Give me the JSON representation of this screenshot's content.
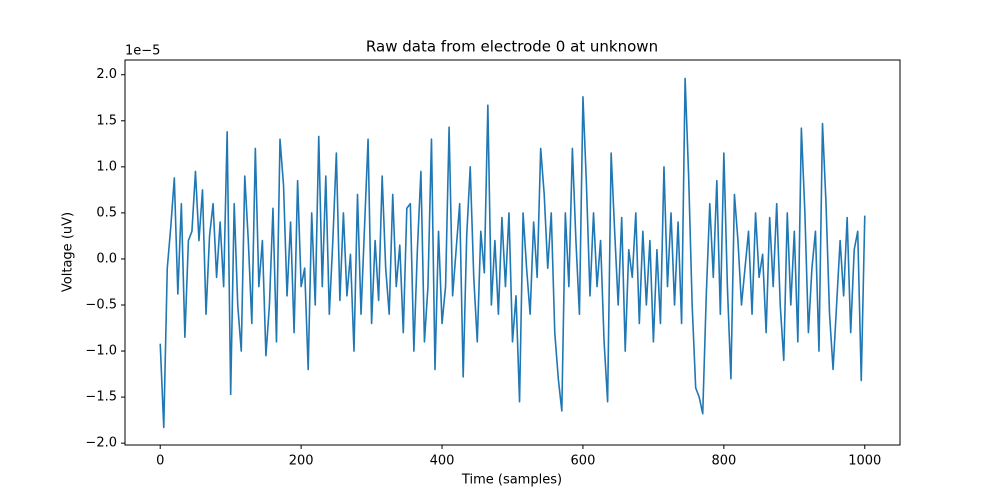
{
  "chart_data": {
    "type": "line",
    "title": "Raw data from electrode 0 at unknown",
    "x_label": "Time (samples)",
    "y_label": "Voltage (uV)",
    "y_offset_label": "1e−5",
    "xlim": [
      -50,
      1050
    ],
    "ylim": [
      -2.02,
      2.16
    ],
    "xticks": [
      0,
      200,
      400,
      600,
      800,
      1000
    ],
    "yticks": [
      {
        "value": -2,
        "label": "−2.0"
      },
      {
        "value": -1.5,
        "label": "−1.5"
      },
      {
        "value": -1,
        "label": "−1.0"
      },
      {
        "value": -0.5,
        "label": "−0.5"
      },
      {
        "value": 0,
        "label": "0.0"
      },
      {
        "value": 0.5,
        "label": "0.5"
      },
      {
        "value": 1,
        "label": "1.0"
      },
      {
        "value": 1.5,
        "label": "1.5"
      },
      {
        "value": 2,
        "label": "2.0"
      }
    ],
    "grid": false,
    "series": [
      {
        "color": "#1f77b4",
        "x": [
          0,
          5,
          10,
          15,
          20,
          25,
          30,
          35,
          40,
          45,
          50,
          55,
          60,
          65,
          70,
          75,
          80,
          85,
          90,
          95,
          100,
          105,
          110,
          115,
          120,
          125,
          130,
          135,
          140,
          145,
          150,
          155,
          160,
          165,
          170,
          175,
          180,
          185,
          190,
          195,
          200,
          205,
          210,
          215,
          220,
          225,
          230,
          235,
          240,
          245,
          250,
          255,
          260,
          265,
          270,
          275,
          280,
          285,
          290,
          295,
          300,
          305,
          310,
          315,
          320,
          325,
          330,
          335,
          340,
          345,
          350,
          355,
          360,
          365,
          370,
          375,
          380,
          385,
          390,
          395,
          400,
          405,
          410,
          415,
          420,
          425,
          430,
          435,
          440,
          445,
          450,
          455,
          460,
          465,
          470,
          475,
          480,
          485,
          490,
          495,
          500,
          505,
          510,
          515,
          520,
          525,
          530,
          535,
          540,
          545,
          550,
          555,
          560,
          565,
          570,
          575,
          580,
          585,
          590,
          595,
          600,
          605,
          610,
          615,
          620,
          625,
          630,
          635,
          640,
          645,
          650,
          655,
          660,
          665,
          670,
          675,
          680,
          685,
          690,
          695,
          700,
          705,
          710,
          715,
          720,
          725,
          730,
          735,
          740,
          745,
          750,
          755,
          760,
          765,
          770,
          775,
          780,
          785,
          790,
          795,
          800,
          805,
          810,
          815,
          820,
          825,
          830,
          835,
          840,
          845,
          850,
          855,
          860,
          865,
          870,
          875,
          880,
          885,
          890,
          895,
          900,
          905,
          910,
          915,
          920,
          925,
          930,
          935,
          940,
          945,
          950,
          955,
          960,
          965,
          970,
          975,
          980,
          985,
          990,
          995,
          1000
        ],
        "values": [
          -0.92,
          -1.83,
          -0.1,
          0.35,
          0.88,
          -0.38,
          0.6,
          -0.85,
          0.2,
          0.3,
          0.95,
          0.2,
          0.75,
          -0.6,
          0.25,
          0.6,
          -0.2,
          0.4,
          -0.3,
          1.38,
          -1.47,
          0.6,
          -0.5,
          -1.0,
          0.9,
          0.2,
          -0.7,
          1.2,
          -0.3,
          0.2,
          -1.05,
          -0.5,
          0.55,
          -0.9,
          1.3,
          0.8,
          -0.4,
          0.4,
          -0.8,
          0.85,
          -0.3,
          -0.1,
          -1.2,
          0.5,
          -0.5,
          1.33,
          -0.3,
          0.9,
          -0.6,
          0.2,
          1.15,
          -0.45,
          0.5,
          -0.4,
          0.05,
          -1.0,
          0.7,
          -0.6,
          0.35,
          1.3,
          -0.7,
          0.2,
          -0.45,
          0.9,
          -0.1,
          -0.6,
          0.7,
          -0.3,
          0.15,
          -0.8,
          0.55,
          0.6,
          -1.0,
          0.1,
          0.95,
          -0.9,
          -0.3,
          1.3,
          -1.2,
          0.3,
          -0.7,
          -0.3,
          1.43,
          -0.4,
          0.1,
          0.6,
          -1.28,
          0.25,
          1.0,
          -0.2,
          -0.9,
          0.3,
          -0.15,
          1.67,
          -0.5,
          0.2,
          -0.6,
          0.45,
          -0.3,
          0.5,
          -0.9,
          -0.4,
          -1.55,
          0.5,
          -0.1,
          -0.6,
          0.4,
          -0.2,
          1.2,
          0.7,
          -0.1,
          0.5,
          -0.8,
          -1.3,
          -1.65,
          0.5,
          -0.3,
          1.2,
          0.2,
          -0.6,
          1.76,
          0.8,
          -0.4,
          0.5,
          -0.3,
          0.2,
          -0.9,
          -1.55,
          1.15,
          0.3,
          -0.5,
          0.45,
          -1.0,
          0.1,
          -0.2,
          0.5,
          -0.7,
          0.3,
          -0.5,
          0.2,
          -0.9,
          0.1,
          -0.7,
          1.0,
          -0.3,
          0.5,
          -0.5,
          0.4,
          -0.7,
          1.96,
          0.9,
          -0.5,
          -1.4,
          -1.5,
          -1.68,
          -0.4,
          0.6,
          -0.2,
          0.85,
          -0.6,
          1.15,
          -0.3,
          -1.3,
          0.7,
          0.2,
          -0.5,
          -0.1,
          0.3,
          -0.6,
          0.5,
          -0.2,
          0.05,
          -0.8,
          0.45,
          -0.3,
          0.6,
          -0.5,
          -1.1,
          0.5,
          -0.5,
          0.3,
          -0.9,
          1.42,
          0.5,
          -0.8,
          -0.1,
          0.3,
          -1.0,
          1.47,
          0.6,
          -0.6,
          -1.2,
          -0.5,
          0.2,
          -0.4,
          0.45,
          -0.8,
          0.1,
          0.3,
          -1.32,
          0.47
        ]
      }
    ]
  }
}
